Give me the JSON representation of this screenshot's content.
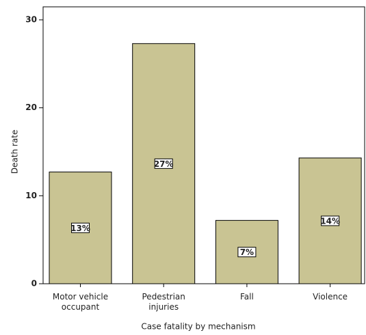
{
  "chart_data": {
    "type": "bar",
    "x_label": "Case fatality by mechanism",
    "y_label": "Death rate",
    "categories": [
      "Motor vehicle occupant",
      "Pedestrian injuries",
      "Fall",
      "Violence"
    ],
    "values": [
      12.7,
      27.3,
      7.2,
      14.3
    ],
    "value_labels": [
      "13%",
      "27%",
      "7%",
      "14%"
    ],
    "color": "#c9c493",
    "ylim": [
      0,
      30
    ],
    "yticks": [
      0,
      10,
      20,
      30
    ]
  }
}
